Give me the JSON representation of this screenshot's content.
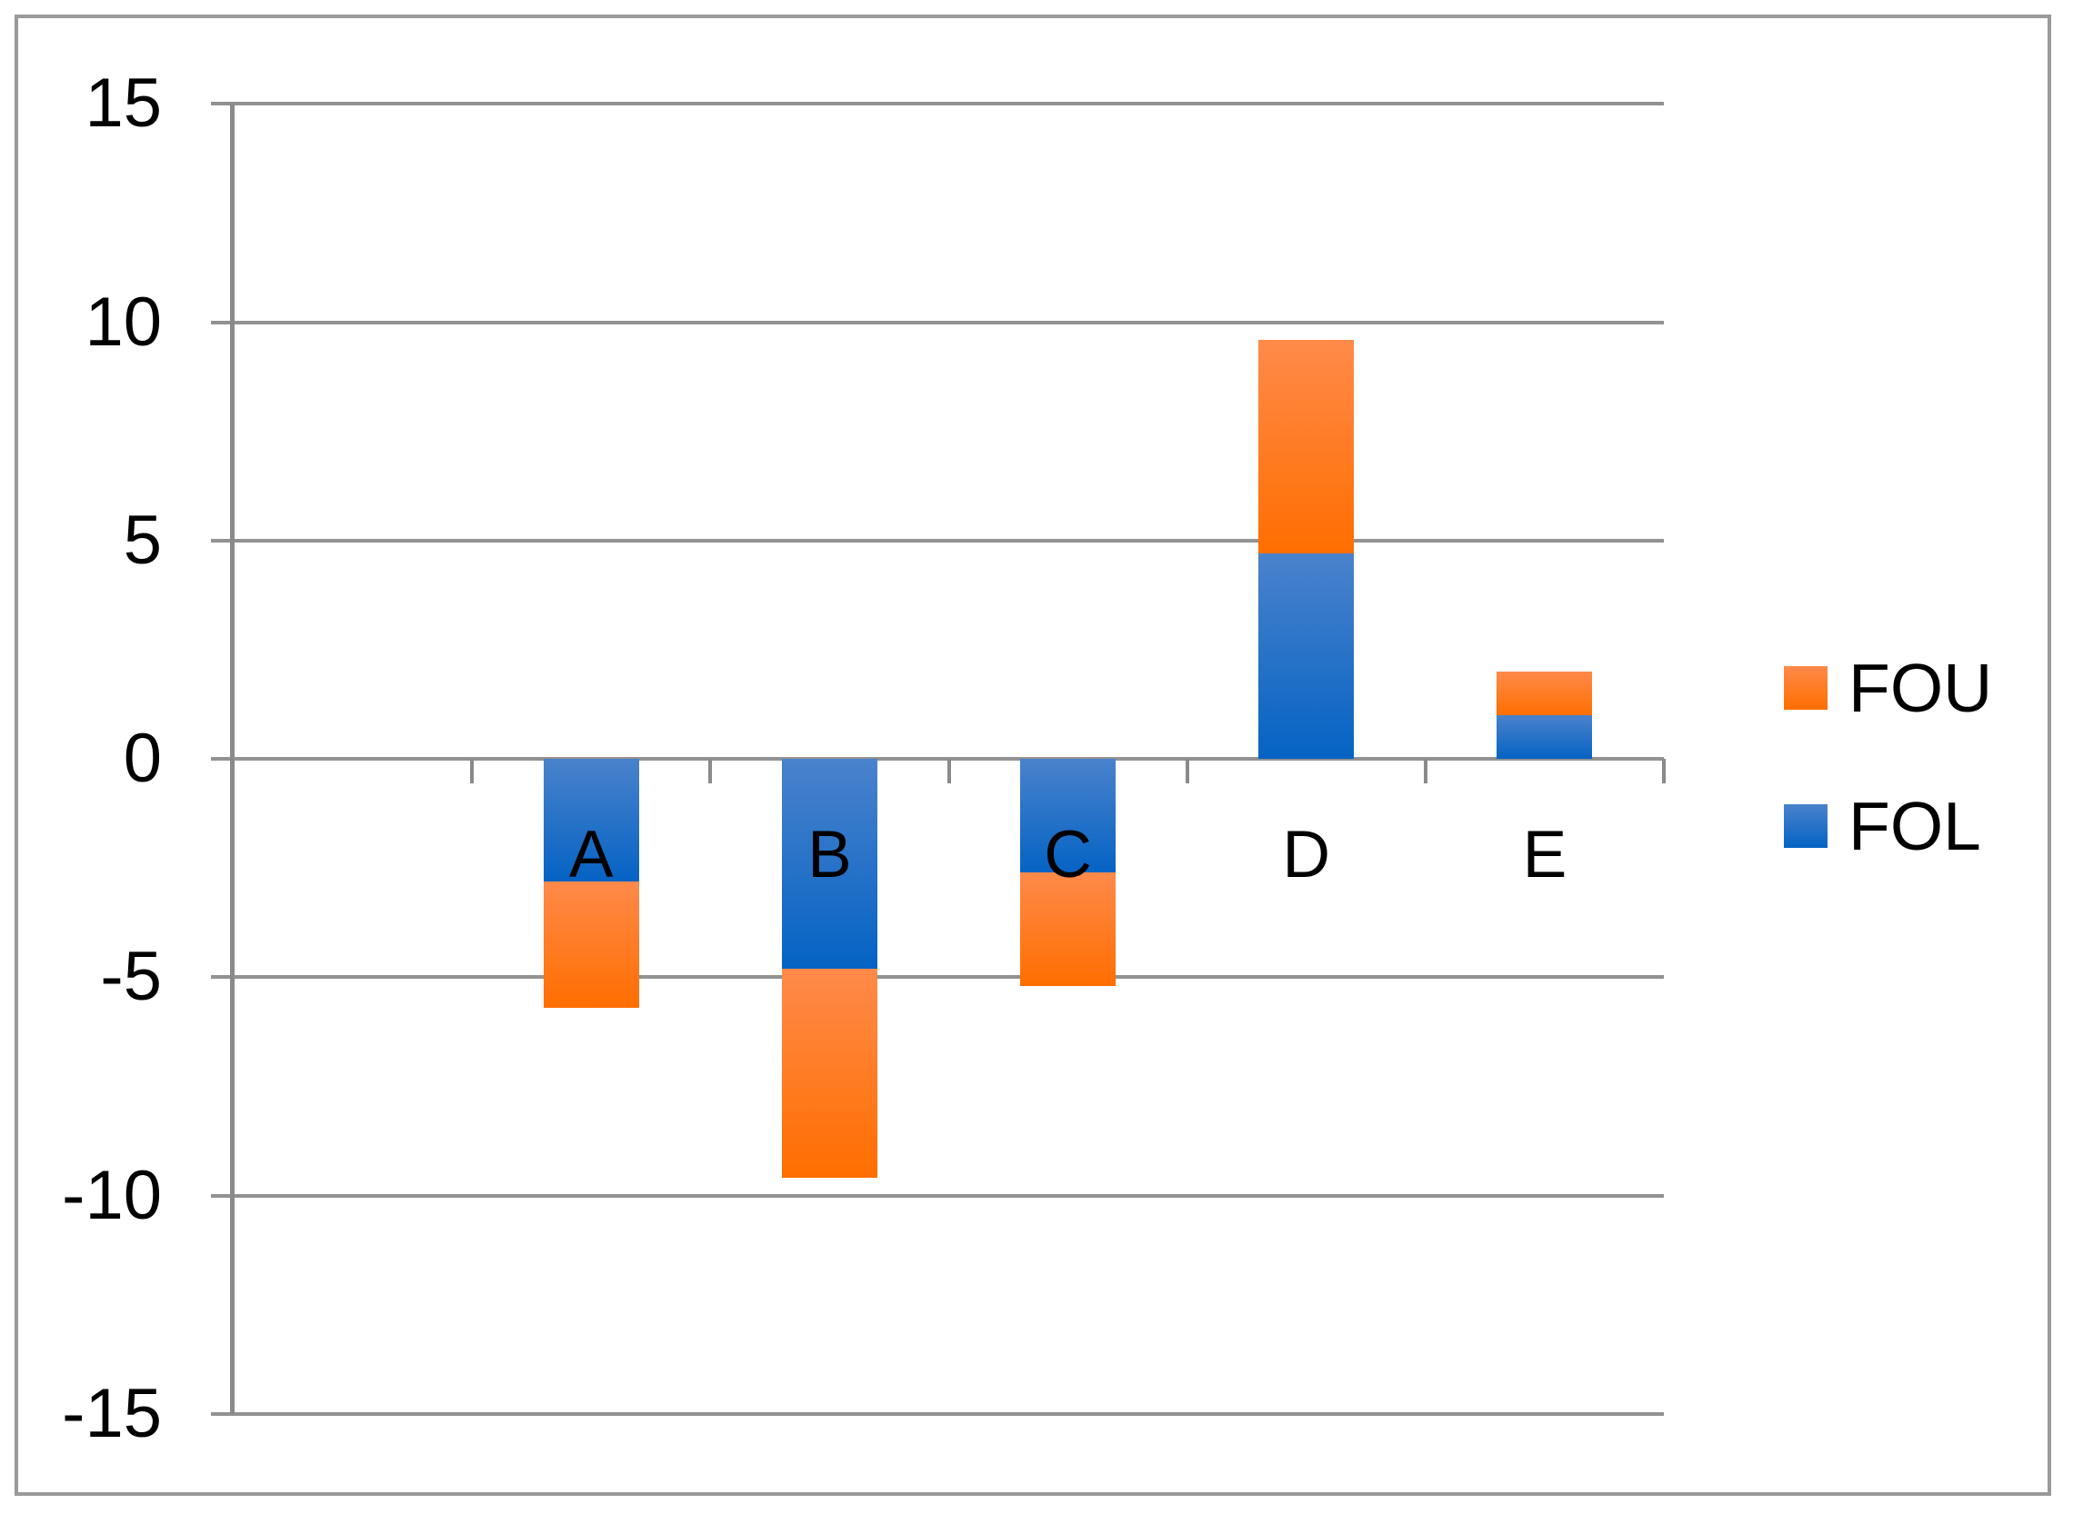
{
  "chart_data": {
    "type": "bar",
    "stacked": true,
    "orientation": "vertical",
    "title": "",
    "xlabel": "",
    "ylabel": "",
    "categories": [
      "A",
      "B",
      "C",
      "D",
      "E"
    ],
    "series": [
      {
        "name": "FOU",
        "values": [
          -2.9,
          -4.8,
          -2.6,
          4.9,
          1.0
        ]
      },
      {
        "name": "FOL",
        "values": [
          -2.8,
          -4.8,
          -2.6,
          4.7,
          1.0
        ]
      }
    ],
    "stack_order_from_axis": [
      "FOL",
      "FOU"
    ],
    "totals": [
      -5.7,
      -9.6,
      -5.2,
      9.6,
      2.0
    ],
    "ylim": [
      -15,
      15
    ],
    "y_ticks": [
      15,
      10,
      5,
      0,
      -5,
      -10,
      -15
    ],
    "y_tick_labels": [
      "15",
      "10",
      "5",
      "0",
      "-5",
      "-10",
      "-15"
    ],
    "grid": true,
    "legend_position": "right",
    "legend": [
      "FOU",
      "FOL"
    ]
  },
  "colors": {
    "FOU_gradient_top": "#ff8a4a",
    "FOU_gradient_bottom": "#ff6e00",
    "FOL_gradient_top": "#4a82cc",
    "FOL_gradient_bottom": "#0563c4",
    "gridline": "#929292",
    "axis_line": "#8a8a8a",
    "text": "#000000",
    "frame_border": "#9a9a9a",
    "background": "#ffffff"
  }
}
